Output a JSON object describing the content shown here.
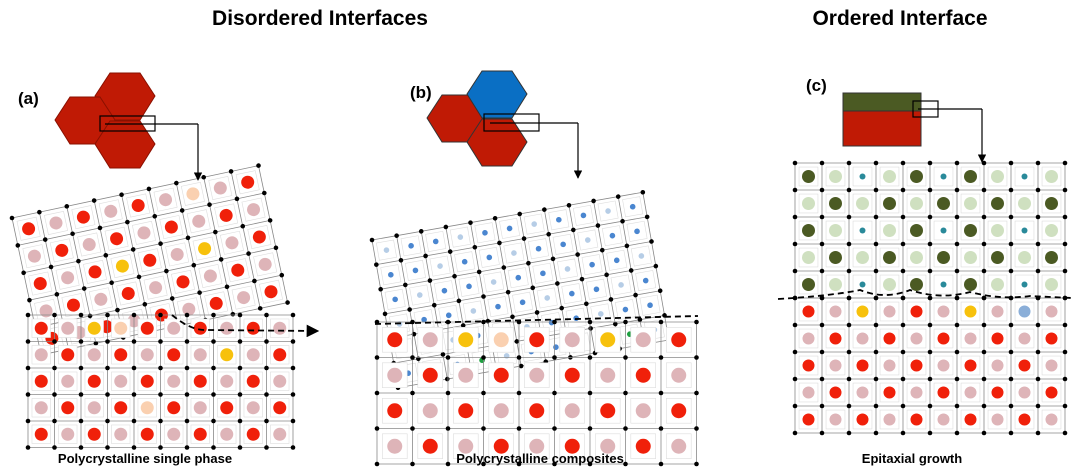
{
  "titles": {
    "disordered": "Disordered Interfaces",
    "ordered": "Ordered Interface"
  },
  "panels": [
    {
      "label": "(a)",
      "caption": "Polycrystalline single phase"
    },
    {
      "label": "(b)",
      "caption": "Polycrystalline composites"
    },
    {
      "label": "(c)",
      "caption": "Epitaxial growth"
    }
  ]
}
